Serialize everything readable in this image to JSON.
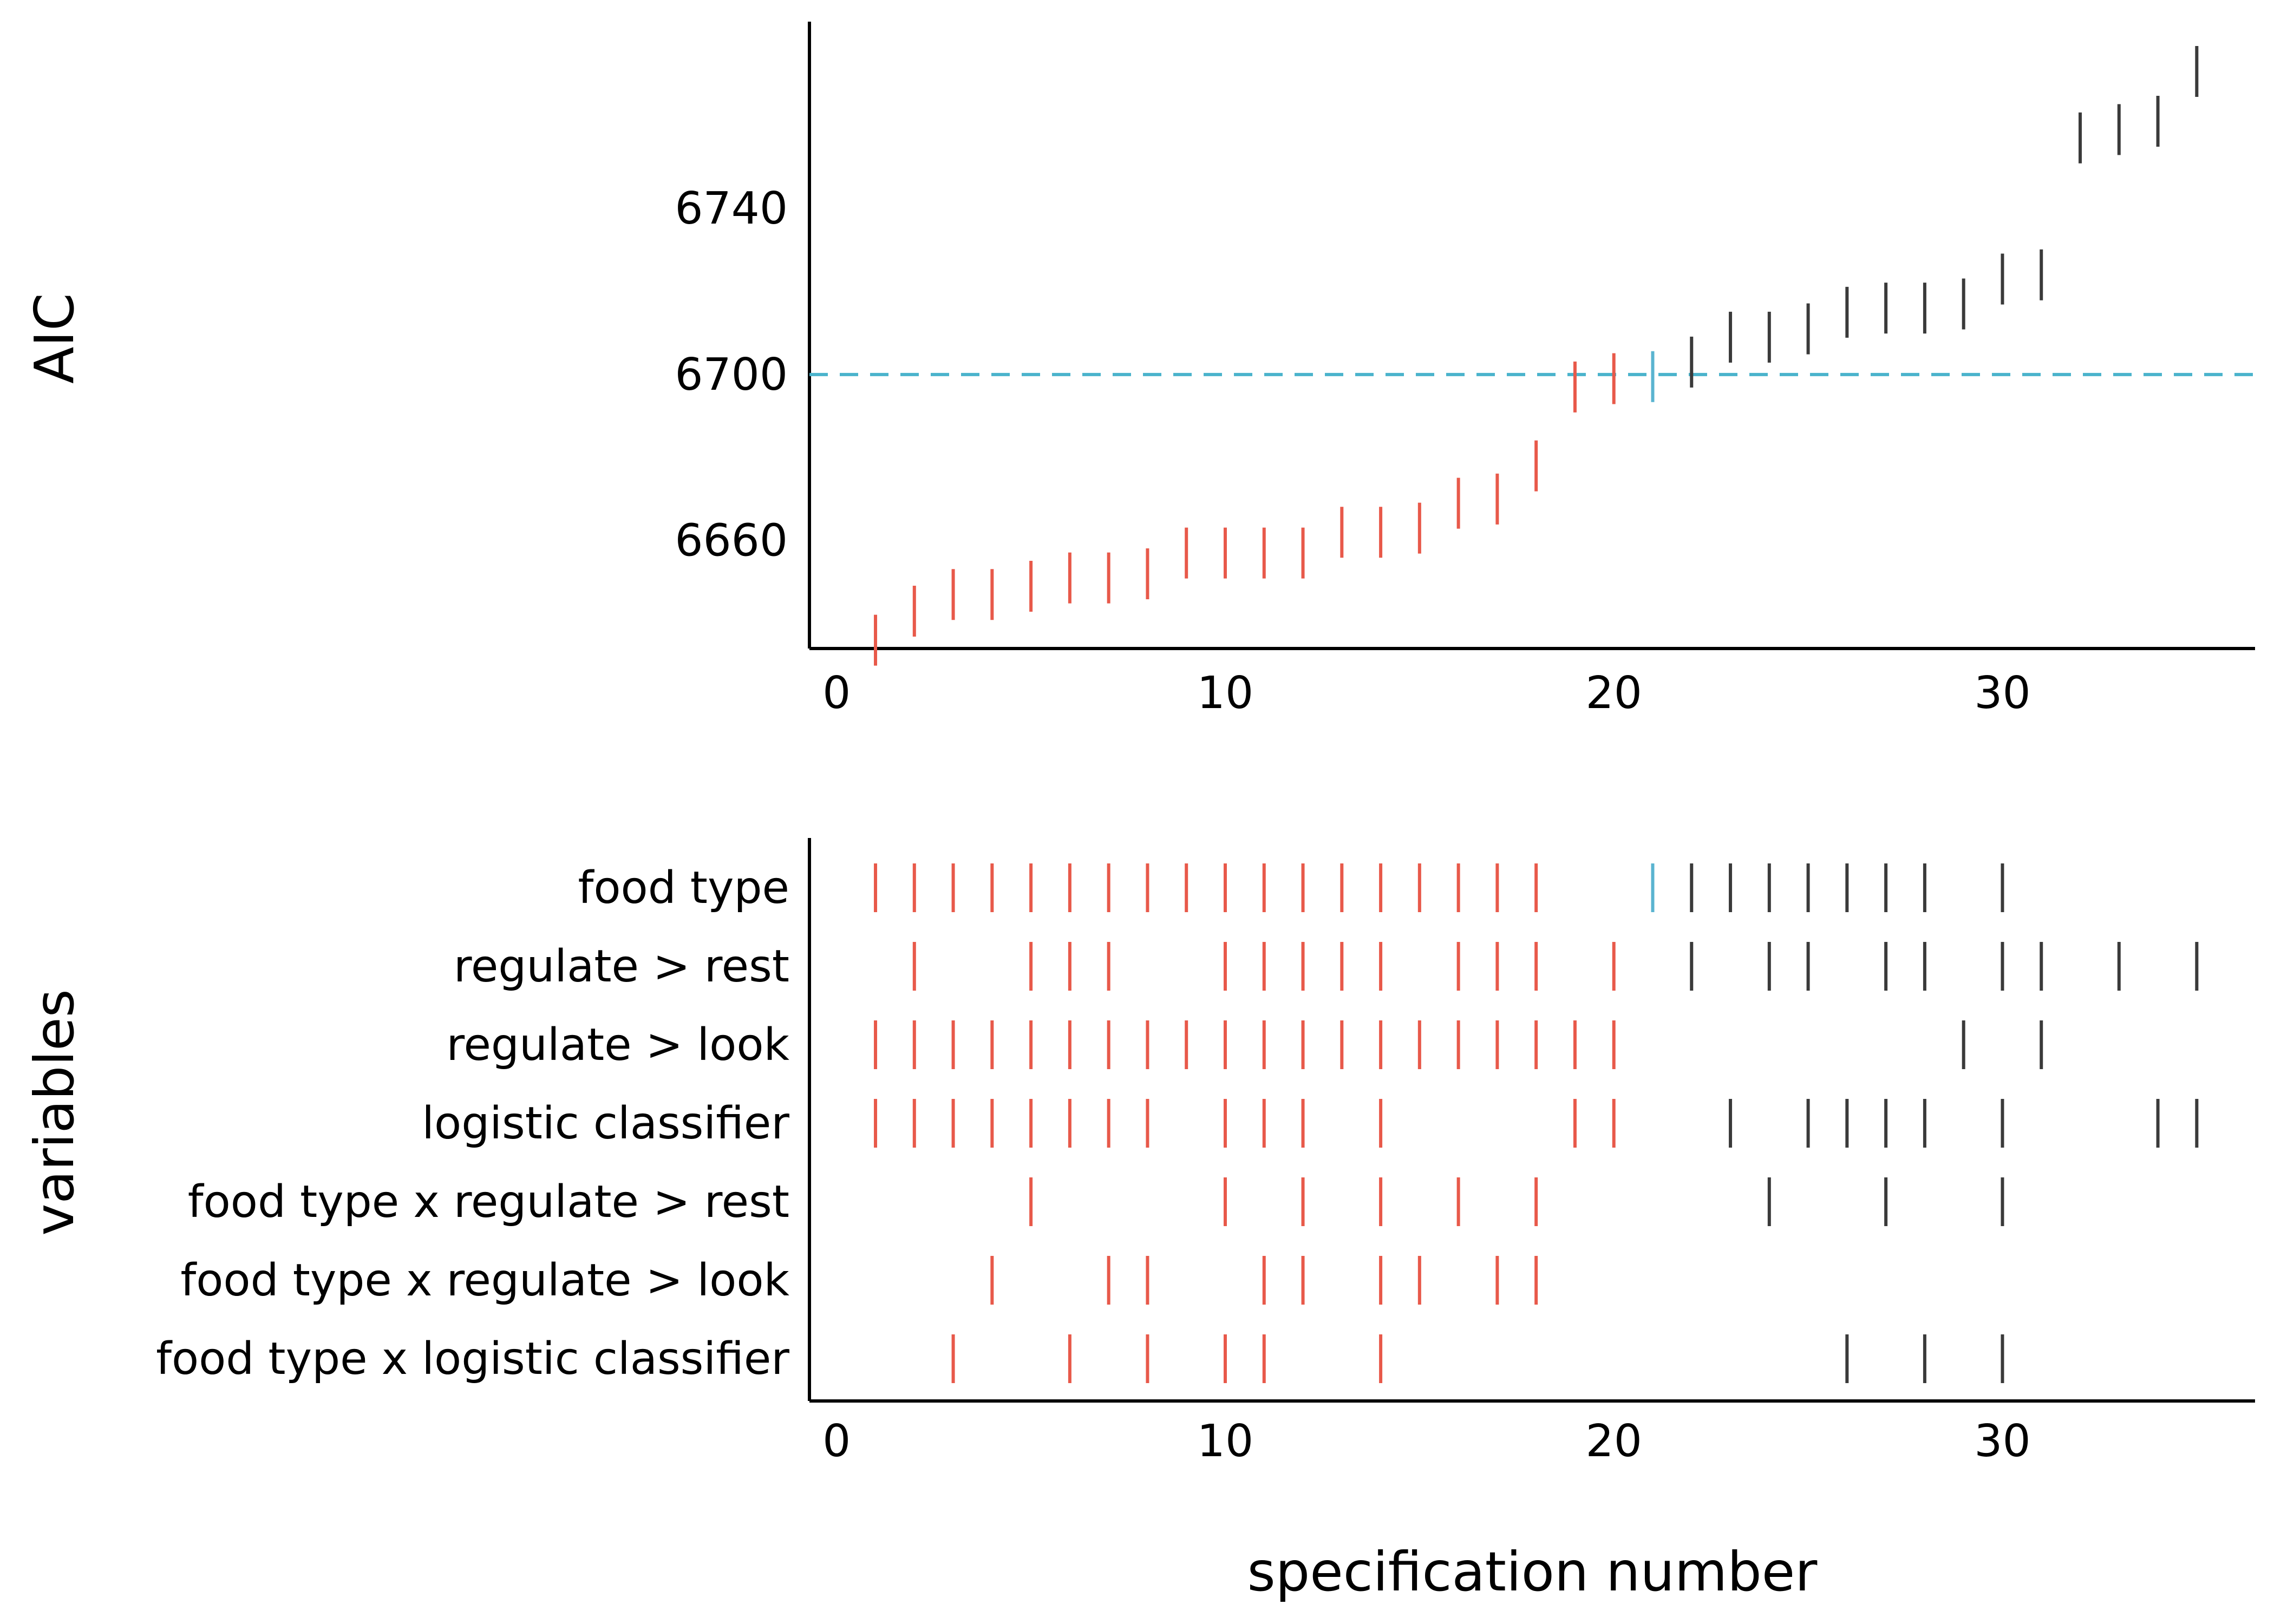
{
  "chart_data": [
    {
      "type": "scatter",
      "title": "",
      "xlabel": "",
      "ylabel": "AIC",
      "xlim": [
        -0.7,
        36.5
      ],
      "ylim": [
        6634,
        6785
      ],
      "xticks": [
        0,
        10,
        20,
        30
      ],
      "yticks": [
        6660,
        6700,
        6740
      ],
      "reference_line": 6700,
      "points": [
        {
          "x": 1,
          "y": 6636,
          "group": "below"
        },
        {
          "x": 2,
          "y": 6643,
          "group": "below"
        },
        {
          "x": 3,
          "y": 6647,
          "group": "below"
        },
        {
          "x": 4,
          "y": 6647,
          "group": "below"
        },
        {
          "x": 5,
          "y": 6649,
          "group": "below"
        },
        {
          "x": 6,
          "y": 6651,
          "group": "below"
        },
        {
          "x": 7,
          "y": 6651,
          "group": "below"
        },
        {
          "x": 8,
          "y": 6652,
          "group": "below"
        },
        {
          "x": 9,
          "y": 6657,
          "group": "below"
        },
        {
          "x": 10,
          "y": 6657,
          "group": "below"
        },
        {
          "x": 11,
          "y": 6657,
          "group": "below"
        },
        {
          "x": 12,
          "y": 6657,
          "group": "below"
        },
        {
          "x": 13,
          "y": 6662,
          "group": "below"
        },
        {
          "x": 14,
          "y": 6662,
          "group": "below"
        },
        {
          "x": 15,
          "y": 6663,
          "group": "below"
        },
        {
          "x": 16,
          "y": 6669,
          "group": "below"
        },
        {
          "x": 17,
          "y": 6670,
          "group": "below"
        },
        {
          "x": 18,
          "y": 6678,
          "group": "below"
        },
        {
          "x": 19,
          "y": 6697,
          "group": "below"
        },
        {
          "x": 20,
          "y": 6699,
          "group": "below"
        },
        {
          "x": 21,
          "y": 6699.5,
          "group": "reference"
        },
        {
          "x": 22,
          "y": 6703,
          "group": "above"
        },
        {
          "x": 23,
          "y": 6709,
          "group": "above"
        },
        {
          "x": 24,
          "y": 6709,
          "group": "above"
        },
        {
          "x": 25,
          "y": 6711,
          "group": "above"
        },
        {
          "x": 26,
          "y": 6715,
          "group": "above"
        },
        {
          "x": 27,
          "y": 6716,
          "group": "above"
        },
        {
          "x": 28,
          "y": 6716,
          "group": "above"
        },
        {
          "x": 29,
          "y": 6717,
          "group": "above"
        },
        {
          "x": 30,
          "y": 6723,
          "group": "above"
        },
        {
          "x": 31,
          "y": 6724,
          "group": "above"
        },
        {
          "x": 32,
          "y": 6757,
          "group": "above"
        },
        {
          "x": 33,
          "y": 6759,
          "group": "above"
        },
        {
          "x": 34,
          "y": 6761,
          "group": "above"
        },
        {
          "x": 35,
          "y": 6773,
          "group": "above"
        }
      ]
    },
    {
      "type": "scatter",
      "title": "",
      "xlabel": "specification number",
      "ylabel": "variables",
      "xlim": [
        -0.7,
        36.5
      ],
      "xticks": [
        0,
        10,
        20,
        30
      ],
      "variables": [
        {
          "label": "food type",
          "below": [
            1,
            2,
            3,
            4,
            5,
            6,
            7,
            8,
            9,
            10,
            11,
            12,
            13,
            14,
            15,
            16,
            17,
            18
          ],
          "reference": [
            21
          ],
          "above": [
            22,
            23,
            24,
            25,
            26,
            27,
            28,
            30
          ]
        },
        {
          "label": "regulate > rest",
          "below": [
            2,
            5,
            6,
            7,
            10,
            11,
            12,
            13,
            14,
            16,
            17,
            18,
            20
          ],
          "reference": [],
          "above": [
            22,
            24,
            25,
            27,
            28,
            30,
            31,
            33,
            35
          ]
        },
        {
          "label": "regulate > look",
          "below": [
            1,
            2,
            3,
            4,
            5,
            6,
            7,
            8,
            9,
            10,
            11,
            12,
            13,
            14,
            15,
            16,
            17,
            18,
            19,
            20
          ],
          "reference": [],
          "above": [
            29,
            31
          ]
        },
        {
          "label": "logistic classifier",
          "below": [
            1,
            2,
            3,
            4,
            5,
            6,
            7,
            8,
            10,
            11,
            12,
            14,
            19,
            20
          ],
          "reference": [],
          "above": [
            23,
            25,
            26,
            27,
            28,
            30,
            34,
            35
          ]
        },
        {
          "label": "food type  x  regulate > rest",
          "below": [
            5,
            10,
            12,
            14,
            16,
            18
          ],
          "reference": [],
          "above": [
            24,
            27,
            30
          ]
        },
        {
          "label": "food type  x  regulate > look",
          "below": [
            4,
            7,
            8,
            11,
            12,
            14,
            15,
            17,
            18
          ],
          "reference": [],
          "above": []
        },
        {
          "label": "food type  x  logistic classifier",
          "below": [
            3,
            6,
            8,
            10,
            11,
            14
          ],
          "reference": [],
          "above": [
            26,
            28,
            30
          ]
        }
      ]
    }
  ],
  "colors": {
    "below": "#e8594a",
    "reference": "#5ab4d0",
    "above": "#3a3a3a",
    "reference_line": "#4ab3cc",
    "axis": "#000000"
  }
}
